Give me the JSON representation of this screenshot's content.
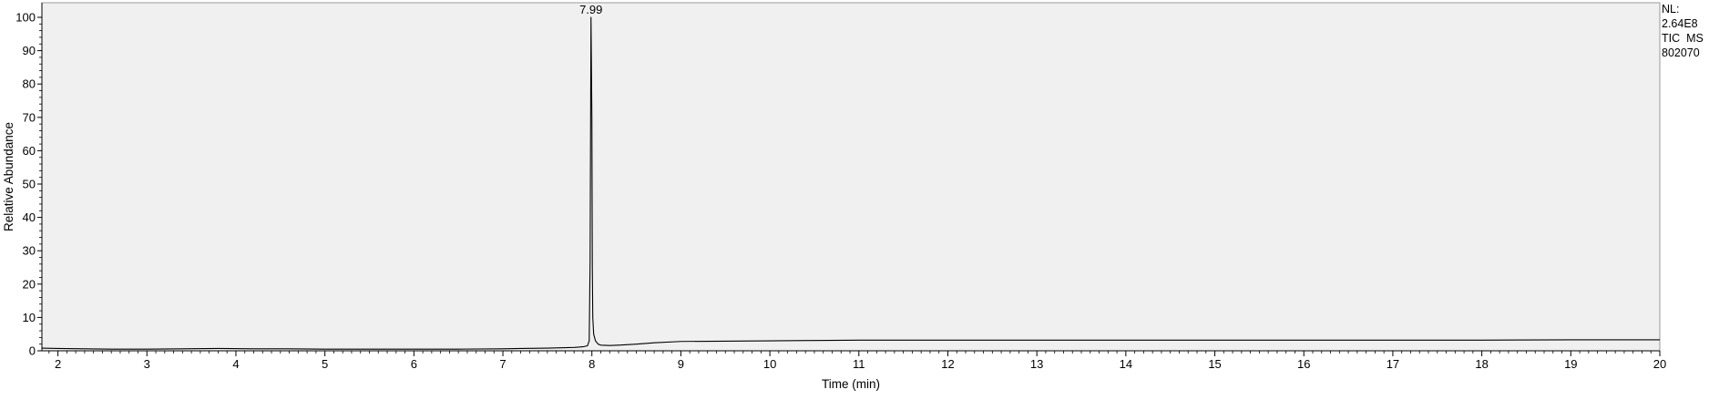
{
  "chart_data": {
    "type": "line",
    "title": "",
    "xlabel": "Time (min)",
    "ylabel": "Relative Abundance",
    "xlim": [
      1.82,
      20.0
    ],
    "ylim": [
      0,
      100
    ],
    "x_ticks": [
      2,
      3,
      4,
      5,
      6,
      7,
      8,
      9,
      10,
      11,
      12,
      13,
      14,
      15,
      16,
      17,
      18,
      19,
      20
    ],
    "y_ticks": [
      0,
      10,
      20,
      30,
      40,
      50,
      60,
      70,
      80,
      90,
      100
    ],
    "grid": false,
    "legend": "none",
    "annotations": [
      {
        "text": "7.99",
        "x": 7.99,
        "y": 100
      }
    ],
    "series": [
      {
        "color": "#000000",
        "x": [
          1.82,
          2.0,
          2.3,
          2.6,
          3.0,
          3.4,
          3.8,
          4.2,
          4.6,
          5.0,
          5.5,
          6.0,
          6.5,
          7.0,
          7.2,
          7.5,
          7.8,
          7.9,
          7.95,
          7.97,
          7.98,
          7.99,
          8.0,
          8.005,
          8.01,
          8.02,
          8.04,
          8.07,
          8.1,
          8.2,
          8.3,
          8.5,
          8.7,
          9.0,
          9.5,
          10.0,
          10.5,
          11.0,
          12.0,
          13.0,
          14.0,
          15.0,
          16.0,
          17.0,
          18.0,
          19.0,
          20.0
        ],
        "y": [
          0.8,
          0.7,
          0.6,
          0.5,
          0.5,
          0.6,
          0.7,
          0.6,
          0.6,
          0.5,
          0.5,
          0.5,
          0.5,
          0.6,
          0.7,
          0.8,
          1.0,
          1.2,
          1.5,
          3.0,
          27.0,
          100.0,
          70.0,
          25.0,
          10.0,
          5.0,
          3.0,
          2.0,
          1.7,
          1.6,
          1.7,
          2.0,
          2.4,
          2.8,
          2.9,
          3.0,
          3.1,
          3.2,
          3.2,
          3.2,
          3.2,
          3.2,
          3.2,
          3.2,
          3.2,
          3.3,
          3.3
        ]
      }
    ]
  },
  "nl_info": {
    "line1": "NL:",
    "line2": "2.64E8",
    "line3": "TIC  MS",
    "line4": "802070"
  },
  "colors": {
    "plot_background": "#f0f0f0",
    "trace": "#000000",
    "axis": "#000000"
  }
}
